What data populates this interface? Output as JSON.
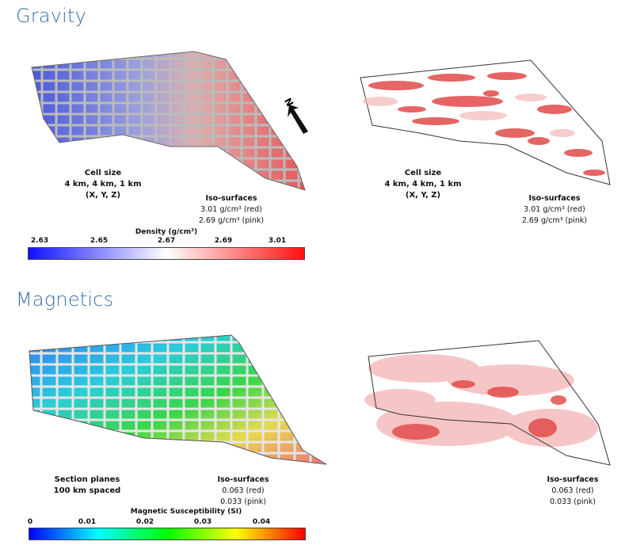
{
  "gravity": {
    "title": "Gravity",
    "left_caption": [
      "Cell size",
      "4 km, 4 km, 1 km",
      "(X, Y, Z)"
    ],
    "left_iso": [
      "Iso-surfaces",
      "3.01 g/cm³ (red)",
      "2.69 g/cm³ (pink)"
    ],
    "right_caption": [
      "Cell size",
      "4 km, 4 km, 1 km",
      "(X, Y, Z)"
    ],
    "right_iso": [
      "Iso-surfaces",
      "3.01 g/cm³ (red)",
      "2.69 g/cm³ (pink)"
    ],
    "north_label": "N",
    "colorbar": {
      "title": "Density (g/cm³)",
      "ticks": [
        "2.63",
        "2.65",
        "2.67",
        "2.69",
        "3.01"
      ],
      "colors": [
        "#1010ff",
        "#ffffff",
        "#ff1010"
      ]
    }
  },
  "magnetics": {
    "title": "Magnetics",
    "left_caption": [
      "Section planes",
      "100 km spaced"
    ],
    "left_iso": [
      "Iso-surfaces",
      "0.063 (red)",
      "0.033 (pink)"
    ],
    "right_iso": [
      "Iso-surfaces",
      "0.063 (red)",
      "0.033 (pink)"
    ],
    "colorbar": {
      "title": "Magnetic Susceptibility (SI)",
      "ticks": [
        "0",
        "0.01",
        "0.02",
        "0.03",
        "0.04"
      ],
      "colors": [
        "#0000ff",
        "#00ffff",
        "#00ff00",
        "#ffff00",
        "#ff0000"
      ]
    }
  }
}
